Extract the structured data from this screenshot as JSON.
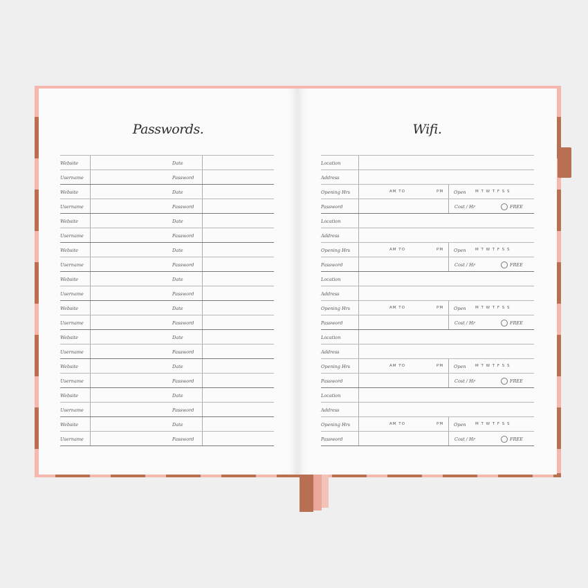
{
  "left_page": {
    "title": "Passwords.",
    "entries": 10,
    "labels": {
      "website": "Website",
      "date": "Date",
      "username": "Username",
      "password": "Password"
    }
  },
  "right_page": {
    "title": "Wifi.",
    "entries": 5,
    "labels": {
      "location": "Location",
      "address": "Address",
      "opening": "Opening Hrs",
      "password": "Password",
      "am_to": "AM  TO",
      "pm": "PM",
      "open": "Open",
      "days": "M  T  W  T  F  S  S",
      "cost": "Cost / Hr",
      "free": "FREE"
    }
  },
  "colors": {
    "cover_pink": "#f6b8ae",
    "cover_brown": "#b8704e"
  }
}
